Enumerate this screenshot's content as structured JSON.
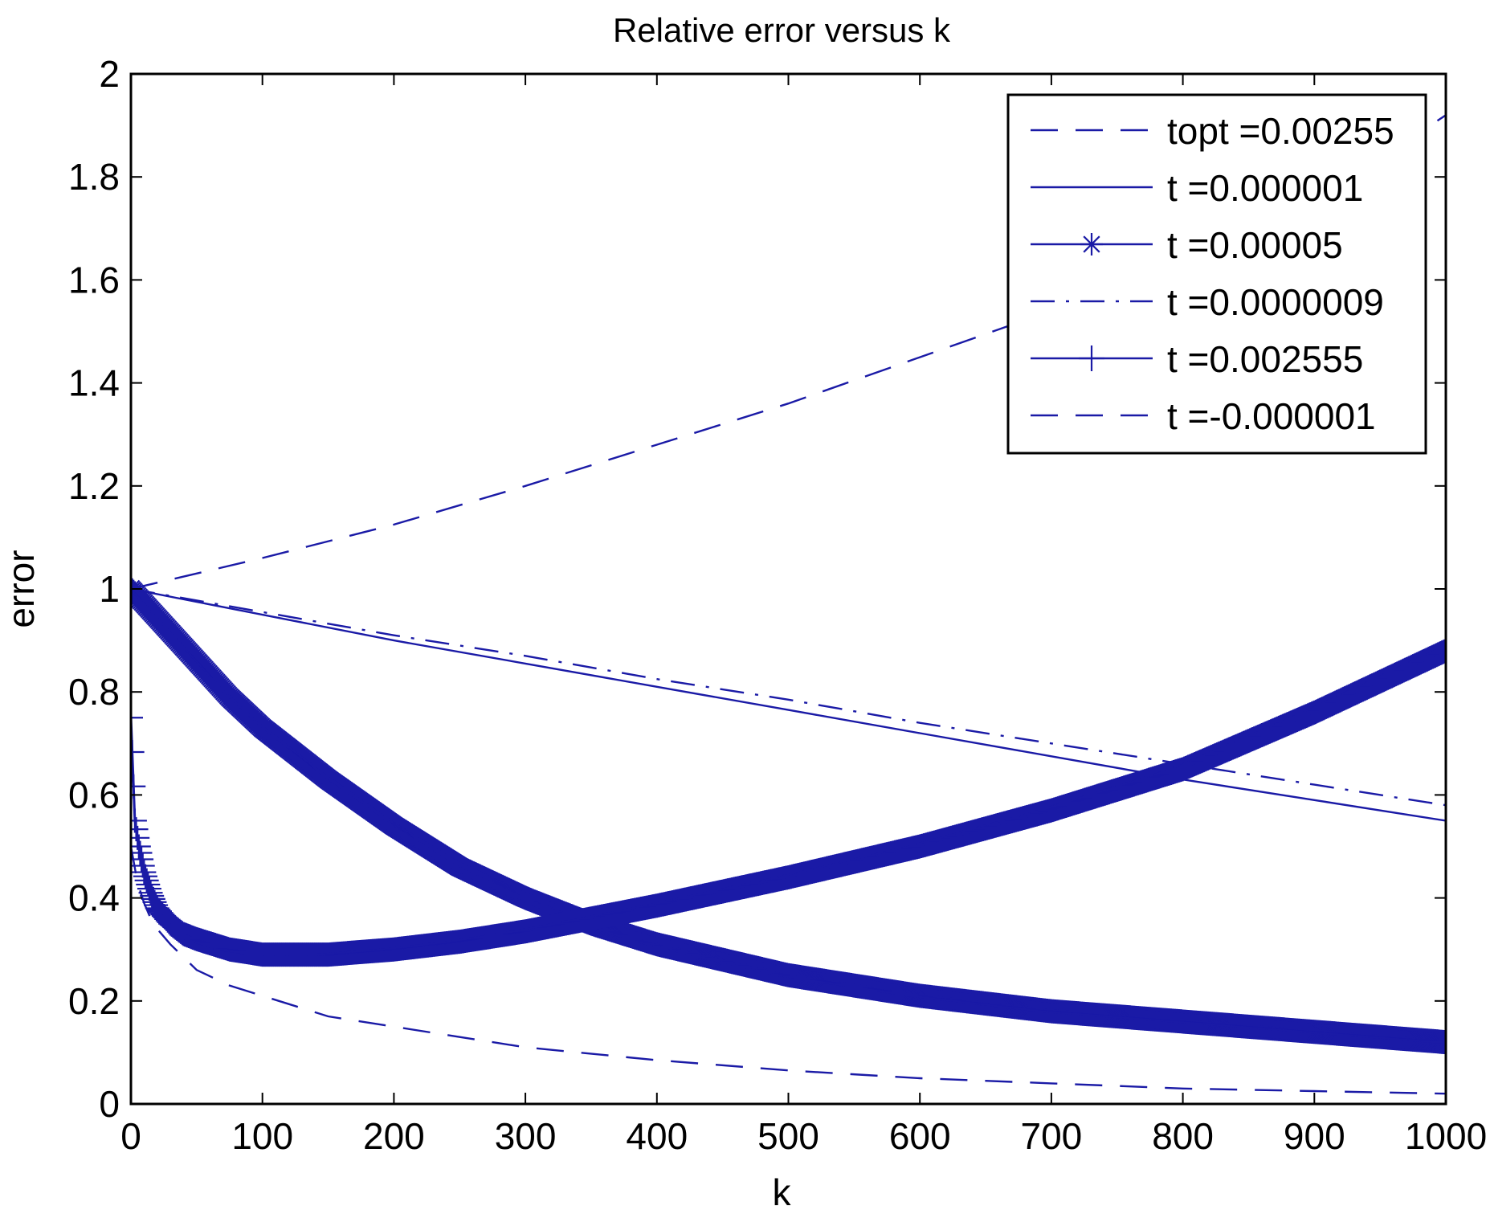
{
  "chart_data": {
    "type": "line",
    "title": "Relative error versus k",
    "xlabel": "k",
    "ylabel": "error",
    "xlim": [
      0,
      1000
    ],
    "ylim": [
      0,
      2
    ],
    "xticks": [
      0,
      100,
      200,
      300,
      400,
      500,
      600,
      700,
      800,
      900,
      1000
    ],
    "yticks": [
      0,
      0.2,
      0.4,
      0.6,
      0.8,
      1,
      1.2,
      1.4,
      1.6,
      1.8,
      2
    ],
    "ytick_labels": [
      "0",
      "0.2",
      "0.4",
      "0.6",
      "0.8",
      "1",
      "1.2",
      "1.4",
      "1.6",
      "1.8",
      "2"
    ],
    "grid": false,
    "legend_position": "top-right",
    "line_color": "#1a1aa6",
    "series": [
      {
        "name": "topt =0.00255",
        "style": "dashed",
        "marker": "none",
        "x": [
          0,
          5,
          10,
          15,
          20,
          30,
          50,
          75,
          100,
          150,
          200,
          300,
          400,
          500,
          600,
          700,
          800,
          900,
          1000
        ],
        "y": [
          0.5,
          0.43,
          0.39,
          0.36,
          0.34,
          0.31,
          0.26,
          0.23,
          0.21,
          0.17,
          0.15,
          0.11,
          0.085,
          0.065,
          0.05,
          0.04,
          0.03,
          0.025,
          0.02
        ]
      },
      {
        "name": "t =0.000001",
        "style": "solid",
        "marker": "none",
        "x": [
          0,
          100,
          200,
          300,
          400,
          500,
          600,
          700,
          800,
          900,
          1000
        ],
        "y": [
          1.0,
          0.95,
          0.9,
          0.855,
          0.81,
          0.765,
          0.72,
          0.675,
          0.63,
          0.59,
          0.55
        ]
      },
      {
        "name": "t =0.00005",
        "style": "solid",
        "marker": "star",
        "x": [
          0,
          25,
          50,
          75,
          100,
          150,
          200,
          250,
          300,
          350,
          400,
          450,
          500,
          600,
          700,
          800,
          900,
          1000
        ],
        "y": [
          1.0,
          0.93,
          0.86,
          0.79,
          0.73,
          0.63,
          0.54,
          0.46,
          0.4,
          0.35,
          0.31,
          0.28,
          0.25,
          0.21,
          0.18,
          0.16,
          0.14,
          0.12
        ]
      },
      {
        "name": "t =0.0000009",
        "style": "dashdot",
        "marker": "none",
        "x": [
          0,
          100,
          200,
          300,
          400,
          500,
          600,
          700,
          800,
          900,
          1000
        ],
        "y": [
          1.0,
          0.955,
          0.91,
          0.87,
          0.825,
          0.785,
          0.74,
          0.7,
          0.66,
          0.62,
          0.58
        ]
      },
      {
        "name": "t =0.002555",
        "style": "solid",
        "marker": "plus",
        "x": [
          0,
          3,
          6,
          10,
          15,
          20,
          30,
          40,
          50,
          75,
          100,
          150,
          200,
          250,
          300,
          350,
          400,
          500,
          600,
          700,
          800,
          900,
          1000
        ],
        "y": [
          0.75,
          0.55,
          0.5,
          0.45,
          0.41,
          0.38,
          0.35,
          0.33,
          0.32,
          0.3,
          0.29,
          0.29,
          0.3,
          0.315,
          0.335,
          0.36,
          0.385,
          0.44,
          0.5,
          0.57,
          0.65,
          0.76,
          0.88
        ]
      },
      {
        "name": "t =-0.000001",
        "style": "dashed",
        "marker": "none",
        "x": [
          0,
          100,
          200,
          300,
          400,
          500,
          600,
          700,
          800,
          900,
          1000
        ],
        "y": [
          1.0,
          1.06,
          1.125,
          1.2,
          1.28,
          1.36,
          1.45,
          1.54,
          1.64,
          1.75,
          1.92
        ]
      }
    ]
  }
}
